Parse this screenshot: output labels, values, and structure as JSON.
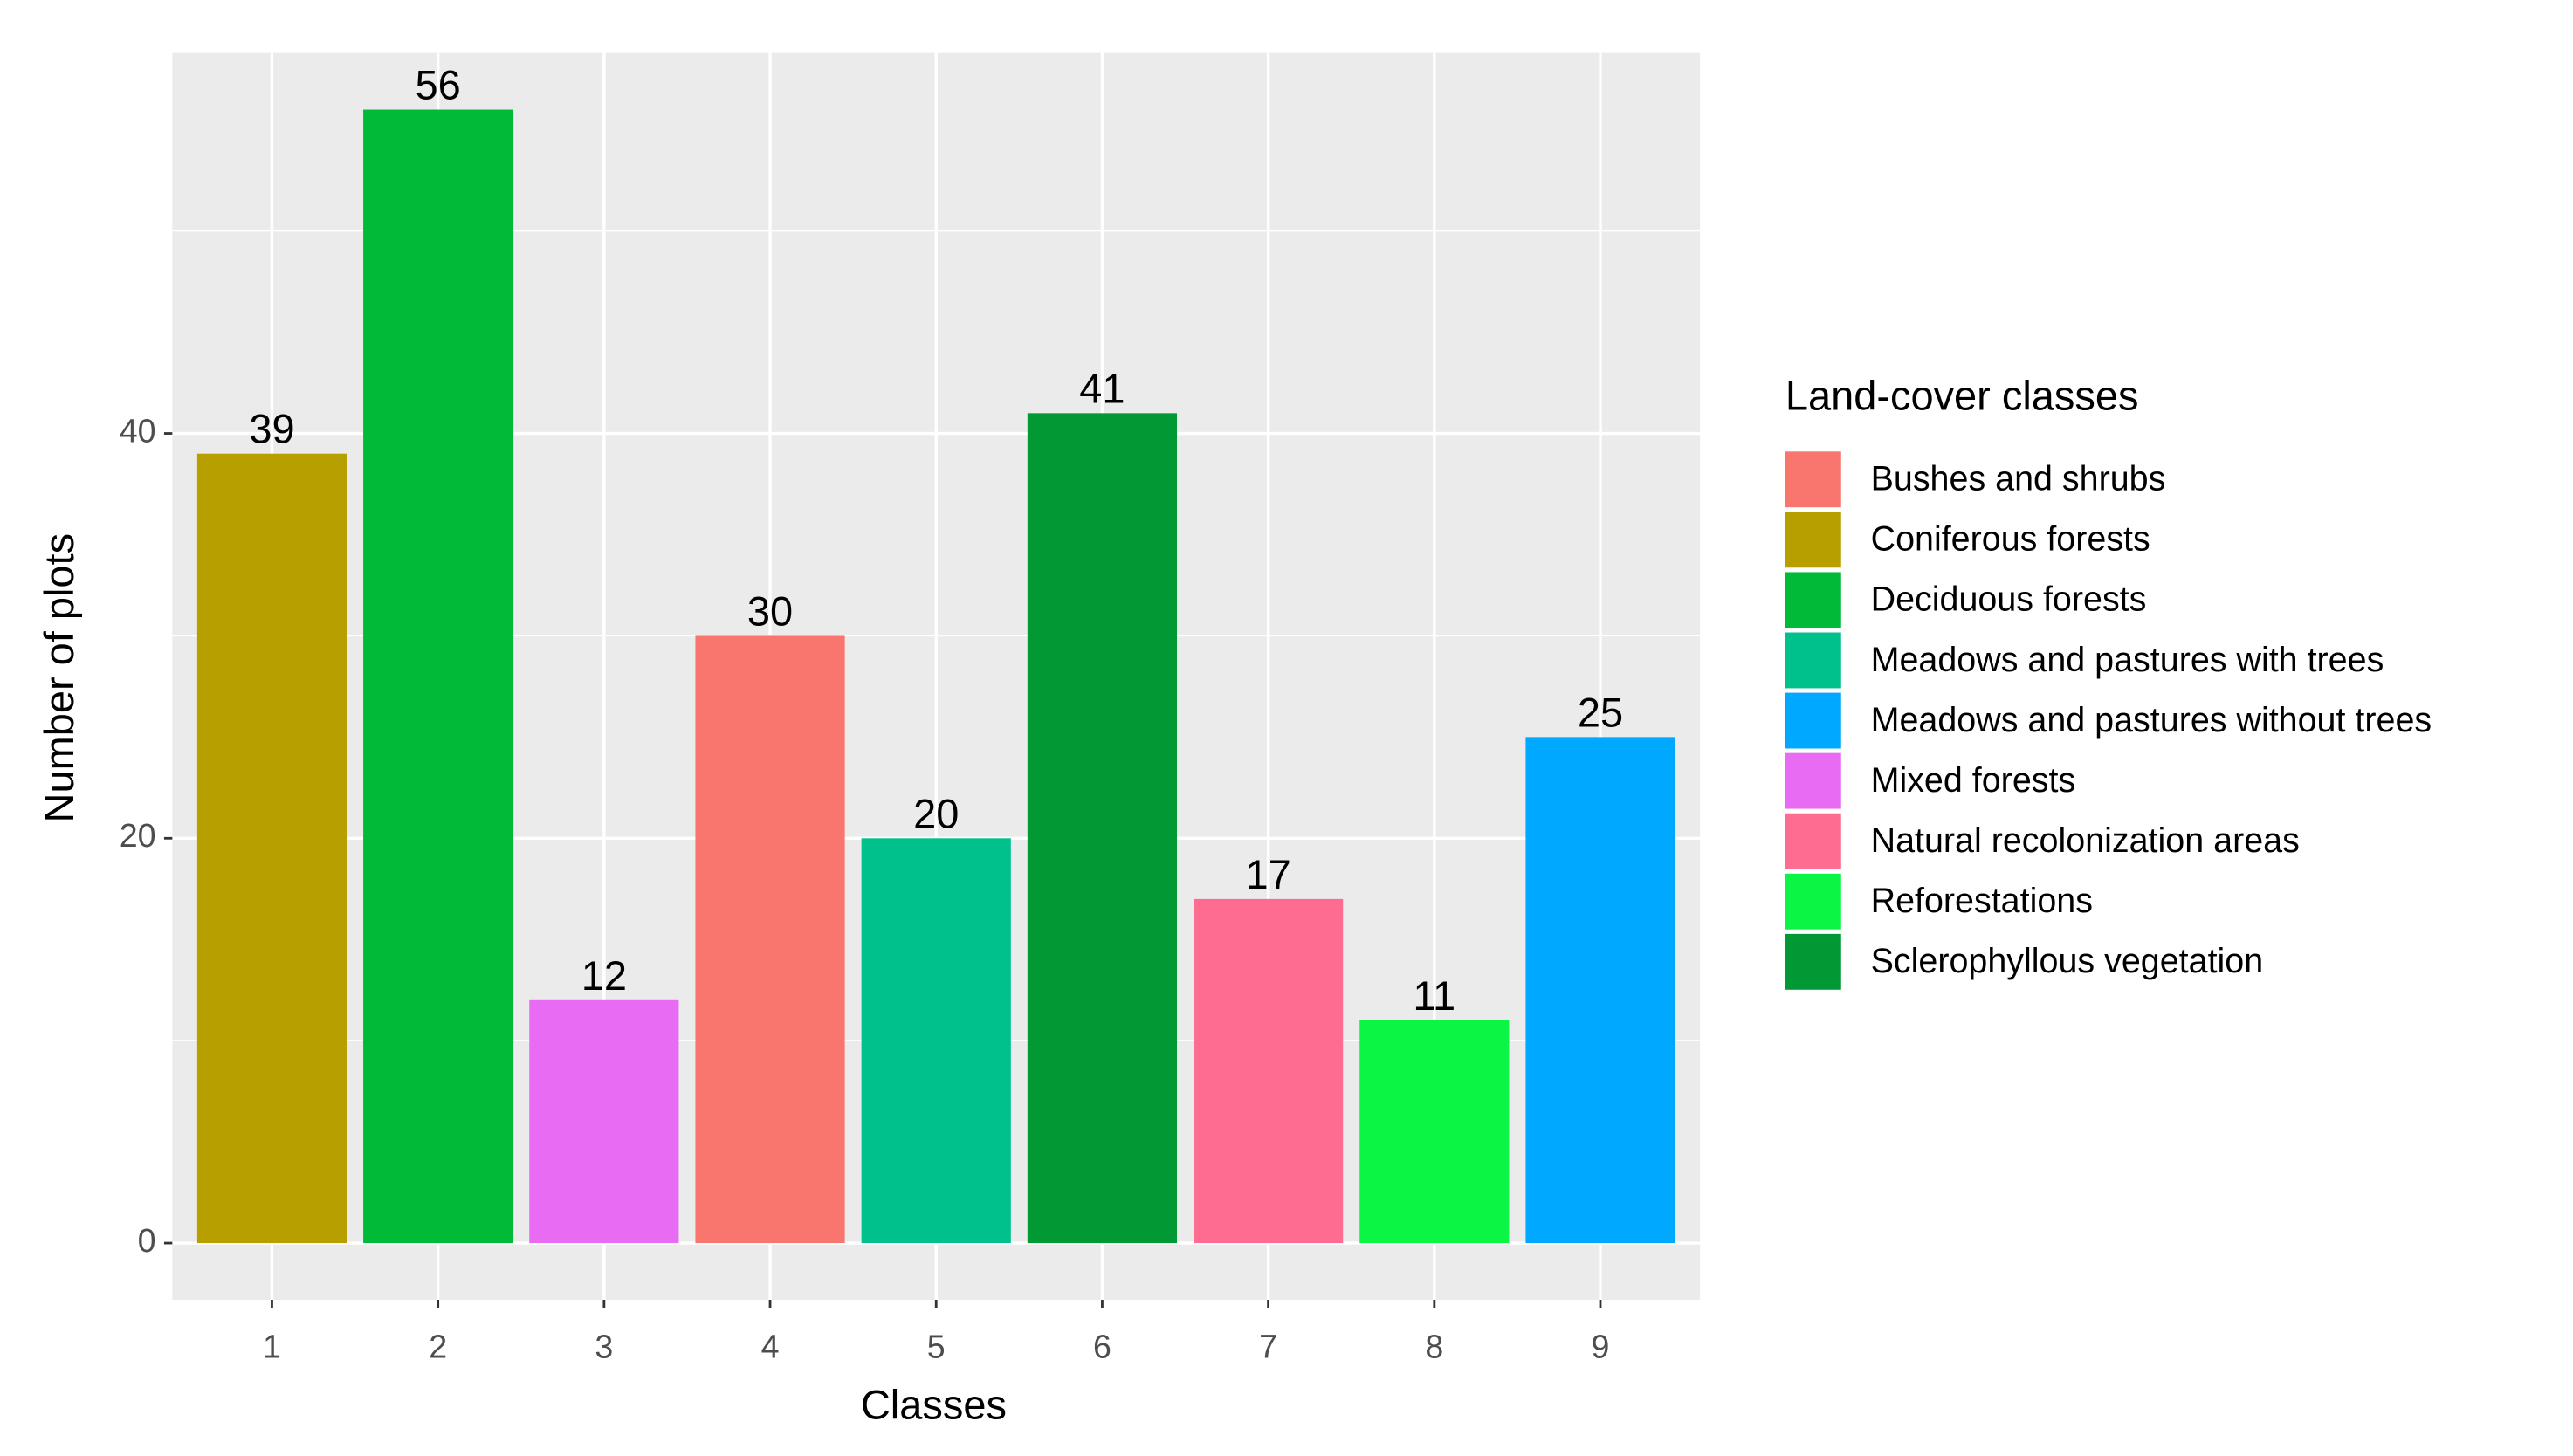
{
  "chart_data": {
    "type": "bar",
    "x_label": "Classes",
    "y_label": "Number of plots",
    "categories": [
      "1",
      "2",
      "3",
      "4",
      "5",
      "6",
      "7",
      "8",
      "9"
    ],
    "values": [
      39,
      56,
      12,
      30,
      20,
      41,
      17,
      11,
      25
    ],
    "colors": [
      "#B79F00",
      "#00BA38",
      "#E76BF3",
      "#F8766D",
      "#00C08B",
      "#009933",
      "#FF6C91",
      "#0BF545",
      "#00A9FF"
    ],
    "ylim": [
      -2.8,
      58.8
    ],
    "yticks": [
      0,
      20,
      40
    ],
    "grid": true,
    "legend": {
      "title": "Land-cover classes",
      "position": "right",
      "items": [
        {
          "name": "Bushes and shrubs",
          "color": "#F8766D"
        },
        {
          "name": "Coniferous forests",
          "color": "#B79F00"
        },
        {
          "name": "Deciduous forests",
          "color": "#00BA38"
        },
        {
          "name": "Meadows and pastures with trees",
          "color": "#00C08B"
        },
        {
          "name": "Meadows and pastures without trees",
          "color": "#00A9FF"
        },
        {
          "name": "Mixed forests",
          "color": "#E76BF3"
        },
        {
          "name": "Natural recolonization areas",
          "color": "#FF6C91"
        },
        {
          "name": "Reforestations",
          "color": "#0BF545"
        },
        {
          "name": "Sclerophyllous vegetation",
          "color": "#009933"
        }
      ]
    }
  }
}
